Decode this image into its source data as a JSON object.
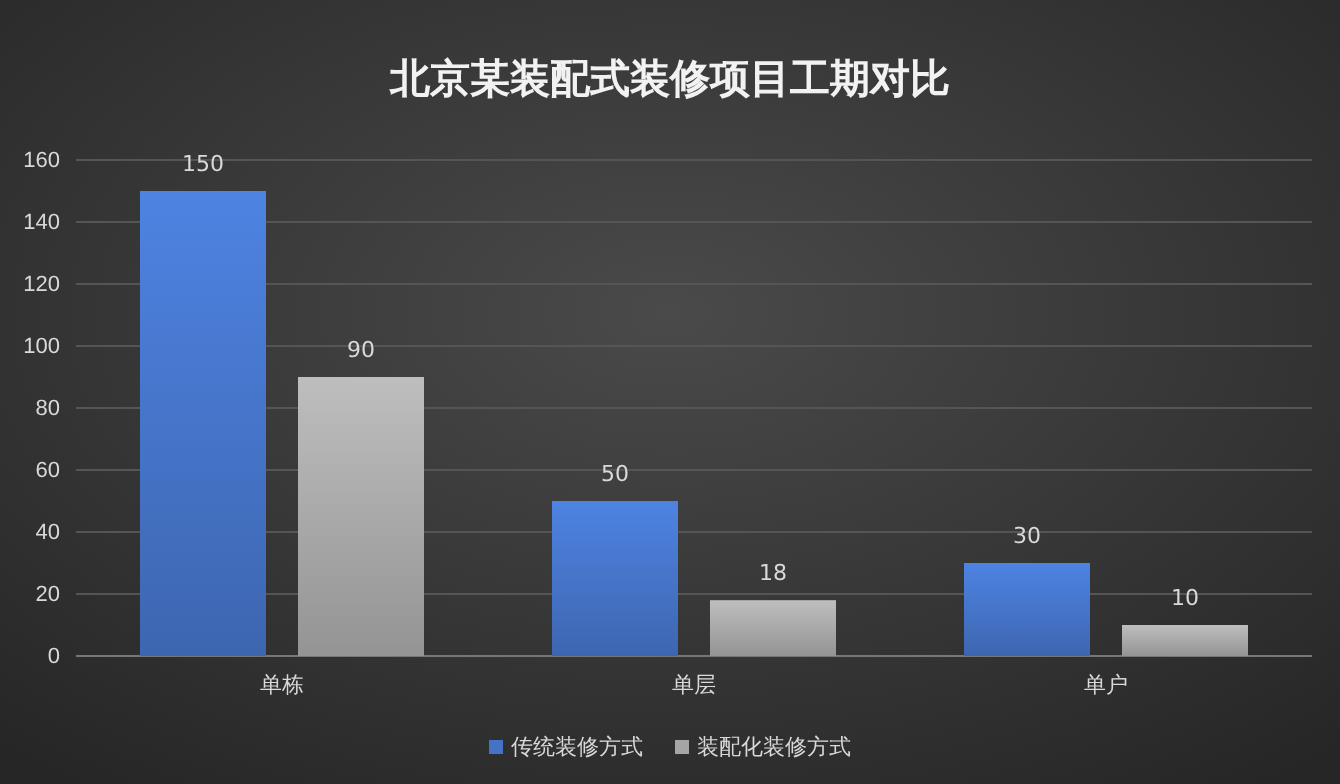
{
  "chart_data": {
    "type": "bar",
    "title": "北京某装配式装修项目工期对比",
    "categories": [
      "单栋",
      "单层",
      "单户"
    ],
    "series": [
      {
        "name": "传统装修方式",
        "color": "#4472c4",
        "values": [
          150,
          50,
          30
        ]
      },
      {
        "name": "装配化装修方式",
        "color": "#a5a5a5",
        "values": [
          90,
          18,
          10
        ]
      }
    ],
    "ylim": [
      0,
      160
    ],
    "yticks": [
      0,
      20,
      40,
      60,
      80,
      100,
      120,
      140,
      160
    ],
    "grid": "y",
    "legend": "bottom",
    "data_labels": true
  }
}
